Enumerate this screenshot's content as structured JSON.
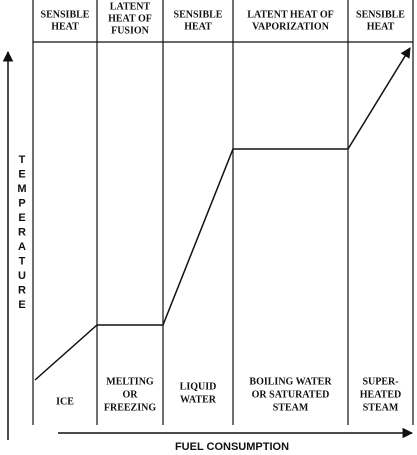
{
  "columns": [
    {
      "header": [
        "SENSIBLE",
        "HEAT"
      ],
      "label": [
        "ICE"
      ]
    },
    {
      "header": [
        "LATENT",
        "HEAT OF",
        "FUSION"
      ],
      "label": [
        "MELTING",
        "OR",
        "FREEZING"
      ]
    },
    {
      "header": [
        "SENSIBLE",
        "HEAT"
      ],
      "label": [
        "LIQUID",
        "WATER"
      ]
    },
    {
      "header": [
        "LATENT HEAT OF",
        "VAPORIZATION"
      ],
      "label": [
        "BOILING WATER",
        "OR SATURATED",
        "STEAM"
      ]
    },
    {
      "header": [
        "SENSIBLE",
        "HEAT"
      ],
      "label": [
        "SUPER-",
        "HEATED",
        "STEAM"
      ]
    }
  ],
  "y_axis_title": "TEMPERATURE",
  "x_axis_title": "FUEL CONSUMPTION"
}
